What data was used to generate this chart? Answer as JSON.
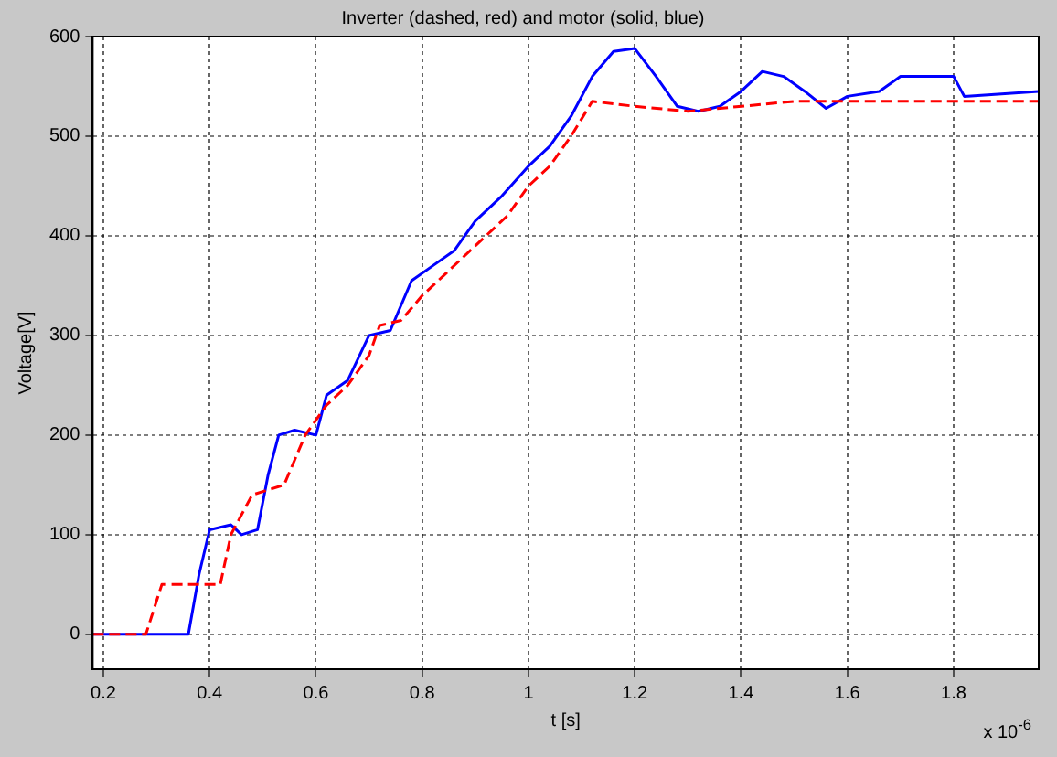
{
  "chart_data": {
    "type": "line",
    "title": "Inverter (dashed, red) and motor (solid, blue)",
    "xlabel": "t [s]",
    "ylabel": "Voltage[V]",
    "annotations": [
      "x 10$^{-6}$"
    ],
    "xlim": [
      0.18,
      1.96
    ],
    "xticks": [
      0.2,
      0.4,
      0.6,
      0.8,
      1,
      1.2,
      1.4,
      1.6,
      1.8
    ],
    "ylim": [
      -35,
      600
    ],
    "yticks": [
      0,
      100,
      200,
      300,
      400,
      500,
      600
    ],
    "grid": true,
    "marker": "none",
    "series": [
      {
        "color": "#ff0000",
        "line_style": "dashed",
        "x": [
          0.18,
          0.28,
          0.31,
          0.38,
          0.42,
          0.44,
          0.48,
          0.54,
          0.58,
          0.62,
          0.66,
          0.7,
          0.72,
          0.76,
          0.8,
          0.84,
          0.88,
          0.92,
          0.96,
          1.0,
          1.04,
          1.08,
          1.12,
          1.2,
          1.3,
          1.5,
          1.7,
          1.96
        ],
        "values": [
          0,
          0,
          50,
          50,
          50,
          100,
          140,
          150,
          200,
          230,
          250,
          280,
          310,
          315,
          340,
          360,
          380,
          400,
          420,
          450,
          470,
          500,
          535,
          530,
          525,
          535,
          535,
          535
        ]
      },
      {
        "color": "#0000ff",
        "line_style": "solid",
        "x": [
          0.18,
          0.3,
          0.36,
          0.38,
          0.4,
          0.44,
          0.46,
          0.49,
          0.51,
          0.53,
          0.56,
          0.6,
          0.62,
          0.66,
          0.7,
          0.74,
          0.78,
          0.82,
          0.86,
          0.9,
          0.95,
          1.0,
          1.04,
          1.08,
          1.12,
          1.16,
          1.2,
          1.24,
          1.28,
          1.32,
          1.36,
          1.4,
          1.44,
          1.48,
          1.52,
          1.56,
          1.6,
          1.66,
          1.7,
          1.8,
          1.82,
          1.96
        ],
        "values": [
          0,
          0,
          0,
          60,
          105,
          110,
          100,
          105,
          160,
          200,
          205,
          200,
          240,
          255,
          300,
          305,
          355,
          370,
          385,
          415,
          440,
          470,
          490,
          520,
          560,
          585,
          588,
          560,
          530,
          525,
          530,
          545,
          565,
          560,
          545,
          528,
          540,
          545,
          560,
          560,
          540,
          545
        ]
      }
    ]
  }
}
